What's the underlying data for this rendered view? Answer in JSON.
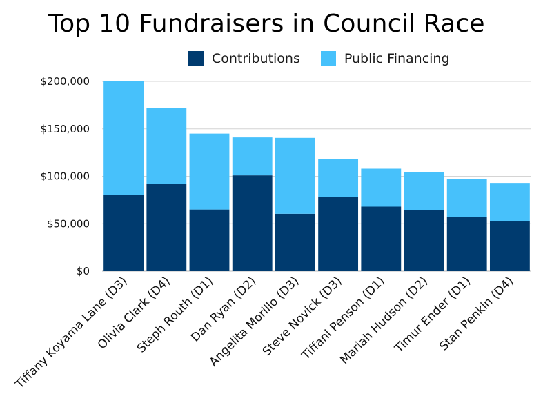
{
  "chart_data": {
    "type": "bar",
    "stacked": true,
    "title": "Top 10 Fundraisers in Council Race",
    "xlabel": "",
    "ylabel": "",
    "ylim": [
      0,
      200000
    ],
    "y_ticks": [
      0,
      50000,
      100000,
      150000,
      200000
    ],
    "y_tick_labels": [
      "$0",
      "$50,000",
      "$100,000",
      "$150,000",
      "$200,000"
    ],
    "grid": true,
    "legend_position": "top",
    "categories": [
      "Tiffany Koyama Lane (D3)",
      "Olivia Clark (D4)",
      "Steph Routh (D1)",
      "Dan Ryan (D2)",
      "Angelita Morillo (D3)",
      "Steve Novick (D3)",
      "Tiffani Penson (D1)",
      "Mariah Hudson (D2)",
      "Timur Ender (D1)",
      "Stan Penkin (D4)"
    ],
    "series": [
      {
        "name": "Contributions",
        "color": "#003b6f",
        "values": [
          80000,
          92000,
          65000,
          101000,
          60500,
          78000,
          68000,
          64000,
          57000,
          52500
        ]
      },
      {
        "name": "Public Financing",
        "color": "#47c1fb",
        "values": [
          120000,
          80000,
          80000,
          40000,
          80000,
          40000,
          40000,
          40000,
          40000,
          40500
        ]
      }
    ]
  }
}
